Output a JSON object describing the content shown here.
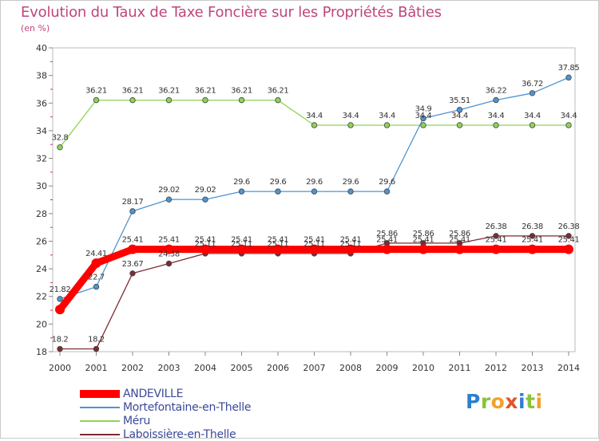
{
  "chart_data": {
    "type": "line",
    "title": "Evolution du Taux de Taxe Foncière sur les Propriétés Bâties",
    "unit_label": "(en %)",
    "xlabel": "",
    "ylabel": "",
    "ylim": [
      18,
      40
    ],
    "yticks": [
      18,
      20,
      22,
      24,
      26,
      28,
      30,
      32,
      34,
      36,
      38,
      40
    ],
    "categories": [
      "2000",
      "2001",
      "2002",
      "2003",
      "2004",
      "2005",
      "2006",
      "2007",
      "2008",
      "2009",
      "2010",
      "2011",
      "2012",
      "2013",
      "2014"
    ],
    "series": [
      {
        "name": "ANDEVILLE",
        "color": "#ff0000",
        "values": [
          21.05,
          24.41,
          25.41,
          25.41,
          25.41,
          25.41,
          25.41,
          25.41,
          25.41,
          25.41,
          25.41,
          25.41,
          25.41,
          25.41,
          25.41
        ],
        "labels": [
          "",
          "24.41",
          "25.41",
          "25.41",
          "25.41",
          "25.41",
          "25.41",
          "25.41",
          "25.41",
          "25.41",
          "25.41",
          "25.41",
          "25.41",
          "25.41",
          "25.41"
        ]
      },
      {
        "name": "Mortefontaine-en-Thelle",
        "color": "#4f94d0",
        "values": [
          21.82,
          22.7,
          28.17,
          29.02,
          29.02,
          29.6,
          29.6,
          29.6,
          29.6,
          29.6,
          34.9,
          35.51,
          36.22,
          36.72,
          37.85
        ],
        "labels": [
          "21.82",
          "22.7",
          "28.17",
          "29.02",
          "29.02",
          "29.6",
          "29.6",
          "29.6",
          "29.6",
          "29.6",
          "34.9",
          "35.51",
          "36.22",
          "36.72",
          "37.85"
        ]
      },
      {
        "name": "Méru",
        "color": "#8ed454",
        "values": [
          32.8,
          36.21,
          36.21,
          36.21,
          36.21,
          36.21,
          36.21,
          34.4,
          34.4,
          34.4,
          34.4,
          34.4,
          34.4,
          34.4,
          34.4
        ],
        "labels": [
          "32.8",
          "36.21",
          "36.21",
          "36.21",
          "36.21",
          "36.21",
          "36.21",
          "34.4",
          "34.4",
          "34.4",
          "34.4",
          "34.4",
          "34.4",
          "34.4",
          "34.4"
        ]
      },
      {
        "name": "Laboissière-en-Thelle",
        "color": "#7b2d32",
        "values": [
          18.2,
          18.2,
          23.67,
          24.38,
          25.11,
          25.11,
          25.11,
          25.11,
          25.11,
          25.86,
          25.86,
          25.86,
          26.38,
          26.38,
          26.38
        ],
        "labels": [
          "18.2",
          "18.2",
          "23.67",
          "24.38",
          "25.11",
          "25.11",
          "25.11",
          "25.11",
          "25.11",
          "25.86",
          "25.86",
          "25.86",
          "26.38",
          "26.38",
          "26.38"
        ]
      }
    ],
    "legend_position": "bottom-left",
    "grid": false
  },
  "logo": {
    "letters": [
      "P",
      "r",
      "o",
      "x",
      "i",
      "t",
      "i"
    ],
    "colors": [
      "#2e7fd0",
      "#8bc33a",
      "#f2a12b",
      "#e0542b",
      "#2e7fd0",
      "#8bc33a",
      "#f2a12b"
    ]
  }
}
